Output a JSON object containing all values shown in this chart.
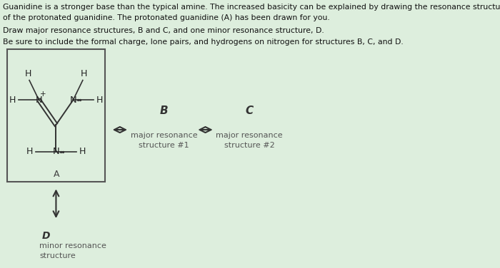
{
  "bg_color": "#ddeedd",
  "text_color": "#111111",
  "title_line1": "Guanidine is a stronger base than the typical amine. The increased basicity can be explained by drawing the resonance structures",
  "title_line2": "of the protonated guanidine. The protonated guanidine (A) has been drawn for you.",
  "instruction1": "Draw major resonance structures, B and C, and one minor resonance structure, D.",
  "instruction2": "Be sure to include the formal charge, lone pairs, and hydrogens on nitrogen for structures B, C, and D.",
  "box_label": "A",
  "label_B": "B",
  "label_C": "C",
  "label_D": "D",
  "label_B_sub1": "major resonance",
  "label_B_sub2": "structure #1",
  "label_C_sub1": "major resonance",
  "label_C_sub2": "structure #2",
  "label_D_sub1": "minor resonance",
  "label_D_sub2": "structure"
}
